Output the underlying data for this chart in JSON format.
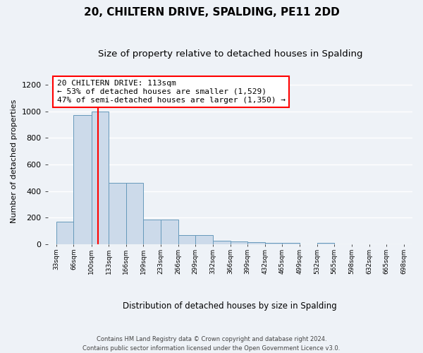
{
  "title1": "20, CHILTERN DRIVE, SPALDING, PE11 2DD",
  "title2": "Size of property relative to detached houses in Spalding",
  "xlabel": "Distribution of detached houses by size in Spalding",
  "ylabel": "Number of detached properties",
  "bar_color": "#ccdaea",
  "bar_edge_color": "#6699bb",
  "bar_heights": [
    170,
    970,
    1000,
    465,
    465,
    185,
    185,
    70,
    70,
    25,
    20,
    15,
    10,
    10,
    0,
    10,
    0,
    0,
    0,
    0
  ],
  "bin_edges": [
    33,
    66,
    100,
    133,
    166,
    199,
    233,
    266,
    299,
    332,
    366,
    399,
    432,
    465,
    499,
    532,
    565,
    598,
    632,
    665,
    698
  ],
  "tick_labels": [
    "33sqm",
    "66sqm",
    "100sqm",
    "133sqm",
    "166sqm",
    "199sqm",
    "233sqm",
    "266sqm",
    "299sqm",
    "332sqm",
    "366sqm",
    "399sqm",
    "432sqm",
    "465sqm",
    "499sqm",
    "532sqm",
    "565sqm",
    "598sqm",
    "632sqm",
    "665sqm",
    "698sqm"
  ],
  "property_size": 113,
  "annotation_text": "20 CHILTERN DRIVE: 113sqm\n← 53% of detached houses are smaller (1,529)\n47% of semi-detached houses are larger (1,350) →",
  "red_line_x": 113,
  "ylim": [
    0,
    1250
  ],
  "yticks": [
    0,
    200,
    400,
    600,
    800,
    1000,
    1200
  ],
  "footer": "Contains HM Land Registry data © Crown copyright and database right 2024.\nContains public sector information licensed under the Open Government Licence v3.0.",
  "background_color": "#eef2f7",
  "grid_color": "#ffffff",
  "title1_fontsize": 11,
  "title2_fontsize": 9.5,
  "annot_fontsize": 8,
  "ylabel_fontsize": 8,
  "xlabel_fontsize": 8.5,
  "footer_fontsize": 6,
  "ytick_fontsize": 8,
  "xtick_fontsize": 6.5
}
